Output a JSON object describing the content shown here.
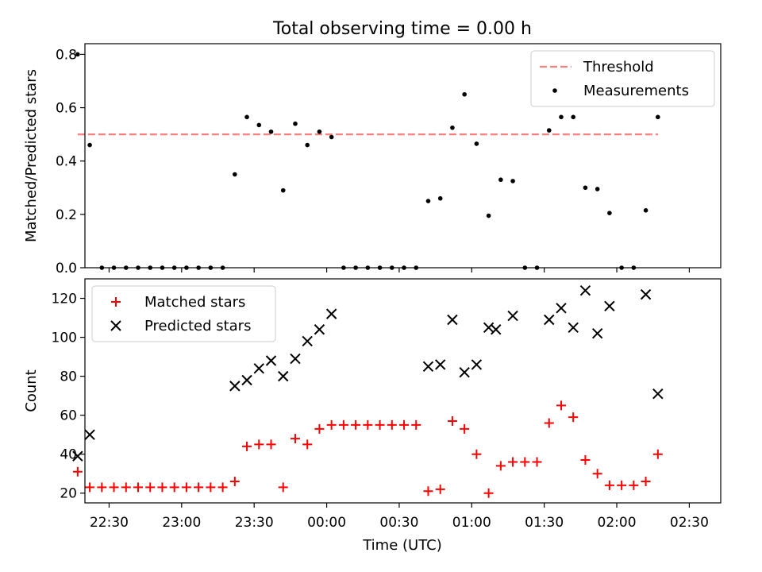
{
  "figure": {
    "title": "Total observing time = 0.00 h",
    "xlabel": "Time (UTC)",
    "x_ticks": [
      "22:30",
      "23:00",
      "23:30",
      "00:00",
      "00:30",
      "01:00",
      "01:30",
      "02:00",
      "02:30"
    ]
  },
  "chart_data": [
    {
      "type": "scatter",
      "ylabel": "Matched/Predicted stars",
      "ylim": [
        0,
        0.84
      ],
      "yticks": [
        "0.0",
        "0.2",
        "0.4",
        "0.6",
        "0.8"
      ],
      "legend_position": "upper-right",
      "threshold": {
        "name": "Threshold",
        "value": 0.5,
        "color": "#ff7f7f"
      },
      "series": [
        {
          "name": "Measurements",
          "color": "#000000",
          "marker": "dot",
          "points": [
            [
              "22:17",
              0.8
            ],
            [
              "22:22",
              0.46
            ],
            [
              "22:27",
              0.0
            ],
            [
              "22:32",
              0.0
            ],
            [
              "22:37",
              0.0
            ],
            [
              "22:42",
              0.0
            ],
            [
              "22:47",
              0.0
            ],
            [
              "22:52",
              0.0
            ],
            [
              "22:57",
              0.0
            ],
            [
              "23:02",
              0.0
            ],
            [
              "23:07",
              0.0
            ],
            [
              "23:12",
              0.0
            ],
            [
              "23:17",
              0.0
            ],
            [
              "23:22",
              0.35
            ],
            [
              "23:27",
              0.565
            ],
            [
              "23:32",
              0.535
            ],
            [
              "23:37",
              0.51
            ],
            [
              "23:42",
              0.29
            ],
            [
              "23:47",
              0.54
            ],
            [
              "23:52",
              0.46
            ],
            [
              "23:57",
              0.51
            ],
            [
              "00:02",
              0.49
            ],
            [
              "00:07",
              0.0
            ],
            [
              "00:12",
              0.0
            ],
            [
              "00:17",
              0.0
            ],
            [
              "00:22",
              0.0
            ],
            [
              "00:27",
              0.0
            ],
            [
              "00:32",
              0.0
            ],
            [
              "00:37",
              0.0
            ],
            [
              "00:42",
              0.25
            ],
            [
              "00:47",
              0.26
            ],
            [
              "00:52",
              0.525
            ],
            [
              "00:57",
              0.65
            ],
            [
              "01:02",
              0.465
            ],
            [
              "01:07",
              0.195
            ],
            [
              "01:12",
              0.33
            ],
            [
              "01:17",
              0.325
            ],
            [
              "01:22",
              0.0
            ],
            [
              "01:27",
              0.0
            ],
            [
              "01:32",
              0.515
            ],
            [
              "01:37",
              0.565
            ],
            [
              "01:42",
              0.565
            ],
            [
              "01:47",
              0.3
            ],
            [
              "01:52",
              0.295
            ],
            [
              "01:57",
              0.205
            ],
            [
              "02:02",
              0.0
            ],
            [
              "02:07",
              0.0
            ],
            [
              "02:12",
              0.215
            ],
            [
              "02:17",
              0.565
            ]
          ]
        }
      ]
    },
    {
      "type": "scatter",
      "ylabel": "Count",
      "ylim": [
        15,
        130
      ],
      "yticks": [
        "20",
        "40",
        "60",
        "80",
        "100",
        "120"
      ],
      "legend_position": "upper-left",
      "series": [
        {
          "name": "Matched stars",
          "color": "#ff0000",
          "marker": "plus",
          "points": [
            [
              "22:17",
              31
            ],
            [
              "22:22",
              23
            ],
            [
              "22:27",
              23
            ],
            [
              "22:32",
              23
            ],
            [
              "22:37",
              23
            ],
            [
              "22:42",
              23
            ],
            [
              "22:47",
              23
            ],
            [
              "22:52",
              23
            ],
            [
              "22:57",
              23
            ],
            [
              "23:02",
              23
            ],
            [
              "23:07",
              23
            ],
            [
              "23:12",
              23
            ],
            [
              "23:17",
              23
            ],
            [
              "23:22",
              26
            ],
            [
              "23:27",
              44
            ],
            [
              "23:32",
              45
            ],
            [
              "23:37",
              45
            ],
            [
              "23:42",
              23
            ],
            [
              "23:47",
              48
            ],
            [
              "23:52",
              45
            ],
            [
              "23:57",
              53
            ],
            [
              "00:02",
              55
            ],
            [
              "00:07",
              55
            ],
            [
              "00:12",
              55
            ],
            [
              "00:17",
              55
            ],
            [
              "00:22",
              55
            ],
            [
              "00:27",
              55
            ],
            [
              "00:32",
              55
            ],
            [
              "00:37",
              55
            ],
            [
              "00:42",
              21
            ],
            [
              "00:47",
              22
            ],
            [
              "00:52",
              57
            ],
            [
              "00:57",
              53
            ],
            [
              "01:02",
              40
            ],
            [
              "01:07",
              20
            ],
            [
              "01:12",
              34
            ],
            [
              "01:17",
              36
            ],
            [
              "01:22",
              36
            ],
            [
              "01:27",
              36
            ],
            [
              "01:32",
              56
            ],
            [
              "01:37",
              65
            ],
            [
              "01:42",
              59
            ],
            [
              "01:47",
              37
            ],
            [
              "01:52",
              30
            ],
            [
              "01:57",
              24
            ],
            [
              "02:02",
              24
            ],
            [
              "02:07",
              24
            ],
            [
              "02:12",
              26
            ],
            [
              "02:17",
              40
            ]
          ]
        },
        {
          "name": "Predicted stars",
          "color": "#000000",
          "marker": "cross",
          "points": [
            [
              "22:17",
              39
            ],
            [
              "22:22",
              50
            ],
            [
              "23:22",
              75
            ],
            [
              "23:27",
              78
            ],
            [
              "23:32",
              84
            ],
            [
              "23:37",
              88
            ],
            [
              "23:42",
              80
            ],
            [
              "23:47",
              89
            ],
            [
              "23:52",
              98
            ],
            [
              "23:57",
              104
            ],
            [
              "00:02",
              112
            ],
            [
              "00:42",
              85
            ],
            [
              "00:47",
              86
            ],
            [
              "00:52",
              109
            ],
            [
              "00:57",
              82
            ],
            [
              "01:02",
              86
            ],
            [
              "01:07",
              105
            ],
            [
              "01:10",
              104
            ],
            [
              "01:17",
              111
            ],
            [
              "01:32",
              109
            ],
            [
              "01:37",
              115
            ],
            [
              "01:42",
              105
            ],
            [
              "01:47",
              124
            ],
            [
              "01:52",
              102
            ],
            [
              "01:57",
              116
            ],
            [
              "02:12",
              122
            ],
            [
              "02:17",
              71
            ]
          ]
        }
      ]
    }
  ]
}
